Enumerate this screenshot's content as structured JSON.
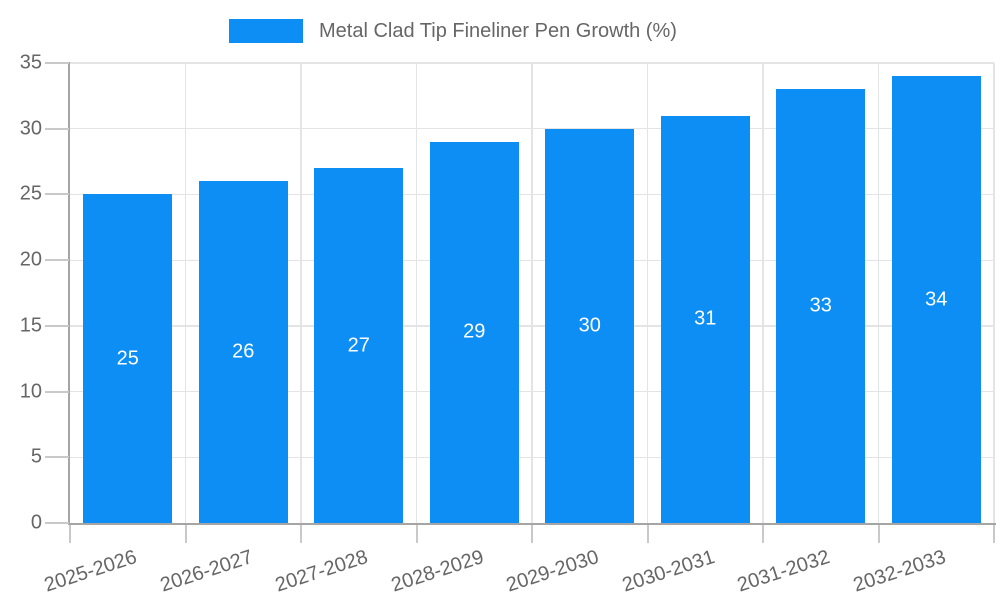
{
  "chart_data": {
    "type": "bar",
    "legend_label": "Metal Clad Tip Fineliner Pen Growth (%)",
    "legend_position": "top",
    "categories": [
      "2025-2026",
      "2026-2027",
      "2027-2028",
      "2028-2029",
      "2029-2030",
      "2030-2031",
      "2031-2032",
      "2032-2033"
    ],
    "values": [
      25,
      26,
      27,
      29,
      30,
      31,
      33,
      34
    ],
    "title": "",
    "xlabel": "",
    "ylabel": "",
    "ylim": [
      0,
      35
    ],
    "yticks": [
      0,
      5,
      10,
      15,
      20,
      25,
      30,
      35
    ],
    "grid": true,
    "x_tick_rotation_deg": -18,
    "colors": {
      "bar": "#0d8ef5",
      "grid": "#e4e4e4",
      "axis": "#a5a5a5",
      "tick_mark": "#c9c9c9",
      "axis_text": "#666666",
      "value_label": "#ffffff",
      "background": "#ffffff"
    }
  }
}
